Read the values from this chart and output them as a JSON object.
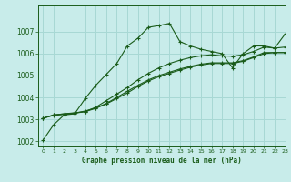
{
  "title": "Graphe pression niveau de la mer (hPa)",
  "background_color": "#c8ecea",
  "grid_color": "#a8d8d4",
  "line_color": "#1a5c1a",
  "marker_color": "#1a5c1a",
  "xlim": [
    -0.5,
    23
  ],
  "ylim": [
    1001.8,
    1008.2
  ],
  "yticks": [
    1002,
    1003,
    1004,
    1005,
    1006,
    1007
  ],
  "xticks": [
    0,
    1,
    2,
    3,
    4,
    5,
    6,
    7,
    8,
    9,
    10,
    11,
    12,
    13,
    14,
    15,
    16,
    17,
    18,
    19,
    20,
    21,
    22,
    23
  ],
  "series": [
    [
      1002.05,
      1002.75,
      1003.2,
      1003.25,
      1003.95,
      1004.55,
      1005.05,
      1005.55,
      1006.35,
      1006.7,
      1007.2,
      1007.28,
      1007.38,
      1006.55,
      1006.35,
      1006.2,
      1006.1,
      1006.0,
      1005.35,
      1006.0,
      1006.35,
      1006.35,
      1006.25,
      1006.9
    ],
    [
      1003.05,
      1003.2,
      1003.25,
      1003.3,
      1003.35,
      1003.55,
      1003.85,
      1004.15,
      1004.45,
      1004.8,
      1005.1,
      1005.35,
      1005.55,
      1005.7,
      1005.82,
      1005.9,
      1005.95,
      1005.9,
      1005.88,
      1005.95,
      1006.1,
      1006.3,
      1006.25,
      1006.3
    ],
    [
      1003.05,
      1003.2,
      1003.25,
      1003.28,
      1003.35,
      1003.5,
      1003.7,
      1003.95,
      1004.2,
      1004.5,
      1004.75,
      1004.95,
      1005.1,
      1005.25,
      1005.38,
      1005.48,
      1005.55,
      1005.55,
      1005.55,
      1005.65,
      1005.82,
      1006.0,
      1006.05,
      1006.05
    ],
    [
      1003.05,
      1003.18,
      1003.22,
      1003.28,
      1003.38,
      1003.52,
      1003.72,
      1004.0,
      1004.28,
      1004.55,
      1004.8,
      1005.0,
      1005.15,
      1005.3,
      1005.42,
      1005.52,
      1005.58,
      1005.58,
      1005.58,
      1005.68,
      1005.85,
      1006.05,
      1006.05,
      1006.05
    ]
  ],
  "figsize": [
    3.2,
    2.0
  ],
  "dpi": 100
}
